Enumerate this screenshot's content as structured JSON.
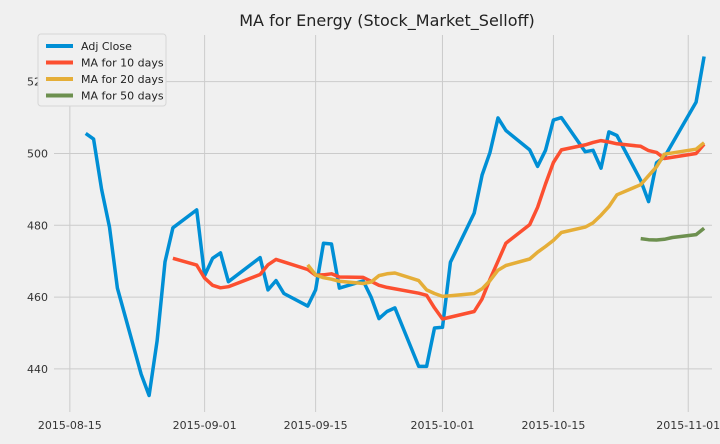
{
  "chart_data": {
    "type": "line",
    "title": "MA for Energy (Stock_Market_Selloff)",
    "xlabel": "",
    "ylabel": "",
    "xlim": [
      "2015-08-13",
      "2015-11-04"
    ],
    "ylim": [
      428,
      533
    ],
    "x_ticks": [
      "2015-08-15",
      "2015-09-01",
      "2015-09-15",
      "2015-10-01",
      "2015-10-15",
      "2015-11-01"
    ],
    "y_ticks": [
      440,
      460,
      480,
      500,
      520
    ],
    "grid": true,
    "legend_position": "top-left",
    "series": [
      {
        "name": "Adj Close",
        "color": "#008fd5",
        "points": [
          [
            "2015-08-17",
            505.6
          ],
          [
            "2015-08-18",
            504.0
          ],
          [
            "2015-08-19",
            490.0
          ],
          [
            "2015-08-20",
            479.5
          ],
          [
            "2015-08-21",
            462.5
          ],
          [
            "2015-08-24",
            438.5
          ],
          [
            "2015-08-25",
            432.6
          ],
          [
            "2015-08-26",
            447.8
          ],
          [
            "2015-08-27",
            469.8
          ],
          [
            "2015-08-28",
            479.3
          ],
          [
            "2015-08-31",
            484.3
          ],
          [
            "2015-09-01",
            466.0
          ],
          [
            "2015-09-02",
            470.8
          ],
          [
            "2015-09-03",
            472.3
          ],
          [
            "2015-09-04",
            464.3
          ],
          [
            "2015-09-08",
            471.0
          ],
          [
            "2015-09-09",
            462.0
          ],
          [
            "2015-09-10",
            464.6
          ],
          [
            "2015-09-11",
            461.0
          ],
          [
            "2015-09-14",
            457.5
          ],
          [
            "2015-09-15",
            462.0
          ],
          [
            "2015-09-16",
            475.0
          ],
          [
            "2015-09-17",
            474.8
          ],
          [
            "2015-09-18",
            462.5
          ],
          [
            "2015-09-21",
            464.5
          ],
          [
            "2015-09-22",
            460.0
          ],
          [
            "2015-09-23",
            454.0
          ],
          [
            "2015-09-24",
            456.0
          ],
          [
            "2015-09-25",
            457.0
          ],
          [
            "2015-09-28",
            440.7
          ],
          [
            "2015-09-29",
            440.7
          ],
          [
            "2015-09-30",
            451.4
          ],
          [
            "2015-10-01",
            451.6
          ],
          [
            "2015-10-02",
            469.7
          ],
          [
            "2015-10-05",
            483.4
          ],
          [
            "2015-10-06",
            494.0
          ],
          [
            "2015-10-07",
            500.3
          ],
          [
            "2015-10-08",
            509.9
          ],
          [
            "2015-10-09",
            506.4
          ],
          [
            "2015-10-12",
            501.0
          ],
          [
            "2015-10-13",
            496.4
          ],
          [
            "2015-10-14",
            500.9
          ],
          [
            "2015-10-15",
            509.3
          ],
          [
            "2015-10-16",
            510.0
          ],
          [
            "2015-10-19",
            500.5
          ],
          [
            "2015-10-20",
            500.9
          ],
          [
            "2015-10-21",
            495.9
          ],
          [
            "2015-10-22",
            506.0
          ],
          [
            "2015-10-23",
            505.0
          ],
          [
            "2015-10-26",
            492.5
          ],
          [
            "2015-10-27",
            486.6
          ],
          [
            "2015-10-28",
            497.4
          ],
          [
            "2015-10-29",
            499.0
          ],
          [
            "2015-11-02",
            514.3
          ],
          [
            "2015-11-03",
            527.0
          ]
        ]
      },
      {
        "name": "MA for 10 days",
        "color": "#fc4f30",
        "points": [
          [
            "2015-08-28",
            470.8
          ],
          [
            "2015-08-31",
            468.9
          ],
          [
            "2015-09-01",
            465.3
          ],
          [
            "2015-09-02",
            463.3
          ],
          [
            "2015-09-03",
            462.6
          ],
          [
            "2015-09-04",
            462.9
          ],
          [
            "2015-09-08",
            466.3
          ],
          [
            "2015-09-09",
            469.0
          ],
          [
            "2015-09-10",
            470.5
          ],
          [
            "2015-09-11",
            469.8
          ],
          [
            "2015-09-14",
            467.7
          ],
          [
            "2015-09-15",
            466.1
          ],
          [
            "2015-09-16",
            466.2
          ],
          [
            "2015-09-17",
            466.5
          ],
          [
            "2015-09-18",
            465.6
          ],
          [
            "2015-09-21",
            465.5
          ],
          [
            "2015-09-22",
            464.4
          ],
          [
            "2015-09-23",
            463.3
          ],
          [
            "2015-09-24",
            462.7
          ],
          [
            "2015-09-28",
            461.1
          ],
          [
            "2015-09-29",
            460.5
          ],
          [
            "2015-09-30",
            457.0
          ],
          [
            "2015-10-01",
            453.9
          ],
          [
            "2015-10-05",
            456.0
          ],
          [
            "2015-10-06",
            459.5
          ],
          [
            "2015-10-07",
            465.0
          ],
          [
            "2015-10-08",
            470.0
          ],
          [
            "2015-10-09",
            475.0
          ],
          [
            "2015-10-12",
            480.2
          ],
          [
            "2015-10-13",
            485.0
          ],
          [
            "2015-10-14",
            491.5
          ],
          [
            "2015-10-15",
            497.5
          ],
          [
            "2015-10-16",
            501.0
          ],
          [
            "2015-10-19",
            502.4
          ],
          [
            "2015-10-20",
            503.1
          ],
          [
            "2015-10-21",
            503.6
          ],
          [
            "2015-10-22",
            503.2
          ],
          [
            "2015-10-23",
            502.7
          ],
          [
            "2015-10-26",
            502.0
          ],
          [
            "2015-10-27",
            500.8
          ],
          [
            "2015-10-28",
            500.3
          ],
          [
            "2015-10-29",
            498.6
          ],
          [
            "2015-11-02",
            500.0
          ],
          [
            "2015-11-03",
            502.6
          ]
        ]
      },
      {
        "name": "MA for 20 days",
        "color": "#e5ae38",
        "points": [
          [
            "2015-09-14",
            469.0
          ],
          [
            "2015-09-15",
            466.2
          ],
          [
            "2015-09-16",
            465.4
          ],
          [
            "2015-09-17",
            465.0
          ],
          [
            "2015-09-18",
            464.4
          ],
          [
            "2015-09-21",
            463.8
          ],
          [
            "2015-09-22",
            464.2
          ],
          [
            "2015-09-23",
            466.0
          ],
          [
            "2015-09-24",
            466.5
          ],
          [
            "2015-09-25",
            466.7
          ],
          [
            "2015-09-28",
            464.6
          ],
          [
            "2015-09-29",
            462.0
          ],
          [
            "2015-09-30",
            461.0
          ],
          [
            "2015-10-01",
            460.2
          ],
          [
            "2015-10-02",
            460.4
          ],
          [
            "2015-10-05",
            461.0
          ],
          [
            "2015-10-06",
            462.3
          ],
          [
            "2015-10-07",
            464.6
          ],
          [
            "2015-10-08",
            467.5
          ],
          [
            "2015-10-09",
            468.8
          ],
          [
            "2015-10-12",
            470.6
          ],
          [
            "2015-10-13",
            472.5
          ],
          [
            "2015-10-14",
            474.1
          ],
          [
            "2015-10-15",
            475.8
          ],
          [
            "2015-10-16",
            478.0
          ],
          [
            "2015-10-19",
            479.5
          ],
          [
            "2015-10-20",
            480.7
          ],
          [
            "2015-10-21",
            482.8
          ],
          [
            "2015-10-22",
            485.2
          ],
          [
            "2015-10-23",
            488.5
          ],
          [
            "2015-10-26",
            491.3
          ],
          [
            "2015-10-27",
            493.8
          ],
          [
            "2015-10-28",
            496.3
          ],
          [
            "2015-10-29",
            499.8
          ],
          [
            "2015-11-02",
            501.2
          ],
          [
            "2015-11-03",
            503.0
          ]
        ]
      },
      {
        "name": "MA for 50 days",
        "color": "#6d904f",
        "points": [
          [
            "2015-10-26",
            476.3
          ],
          [
            "2015-10-27",
            476.0
          ],
          [
            "2015-10-28",
            475.9
          ],
          [
            "2015-10-29",
            476.1
          ],
          [
            "2015-10-30",
            476.6
          ],
          [
            "2015-11-02",
            477.4
          ],
          [
            "2015-11-03",
            479.2
          ]
        ]
      }
    ]
  }
}
